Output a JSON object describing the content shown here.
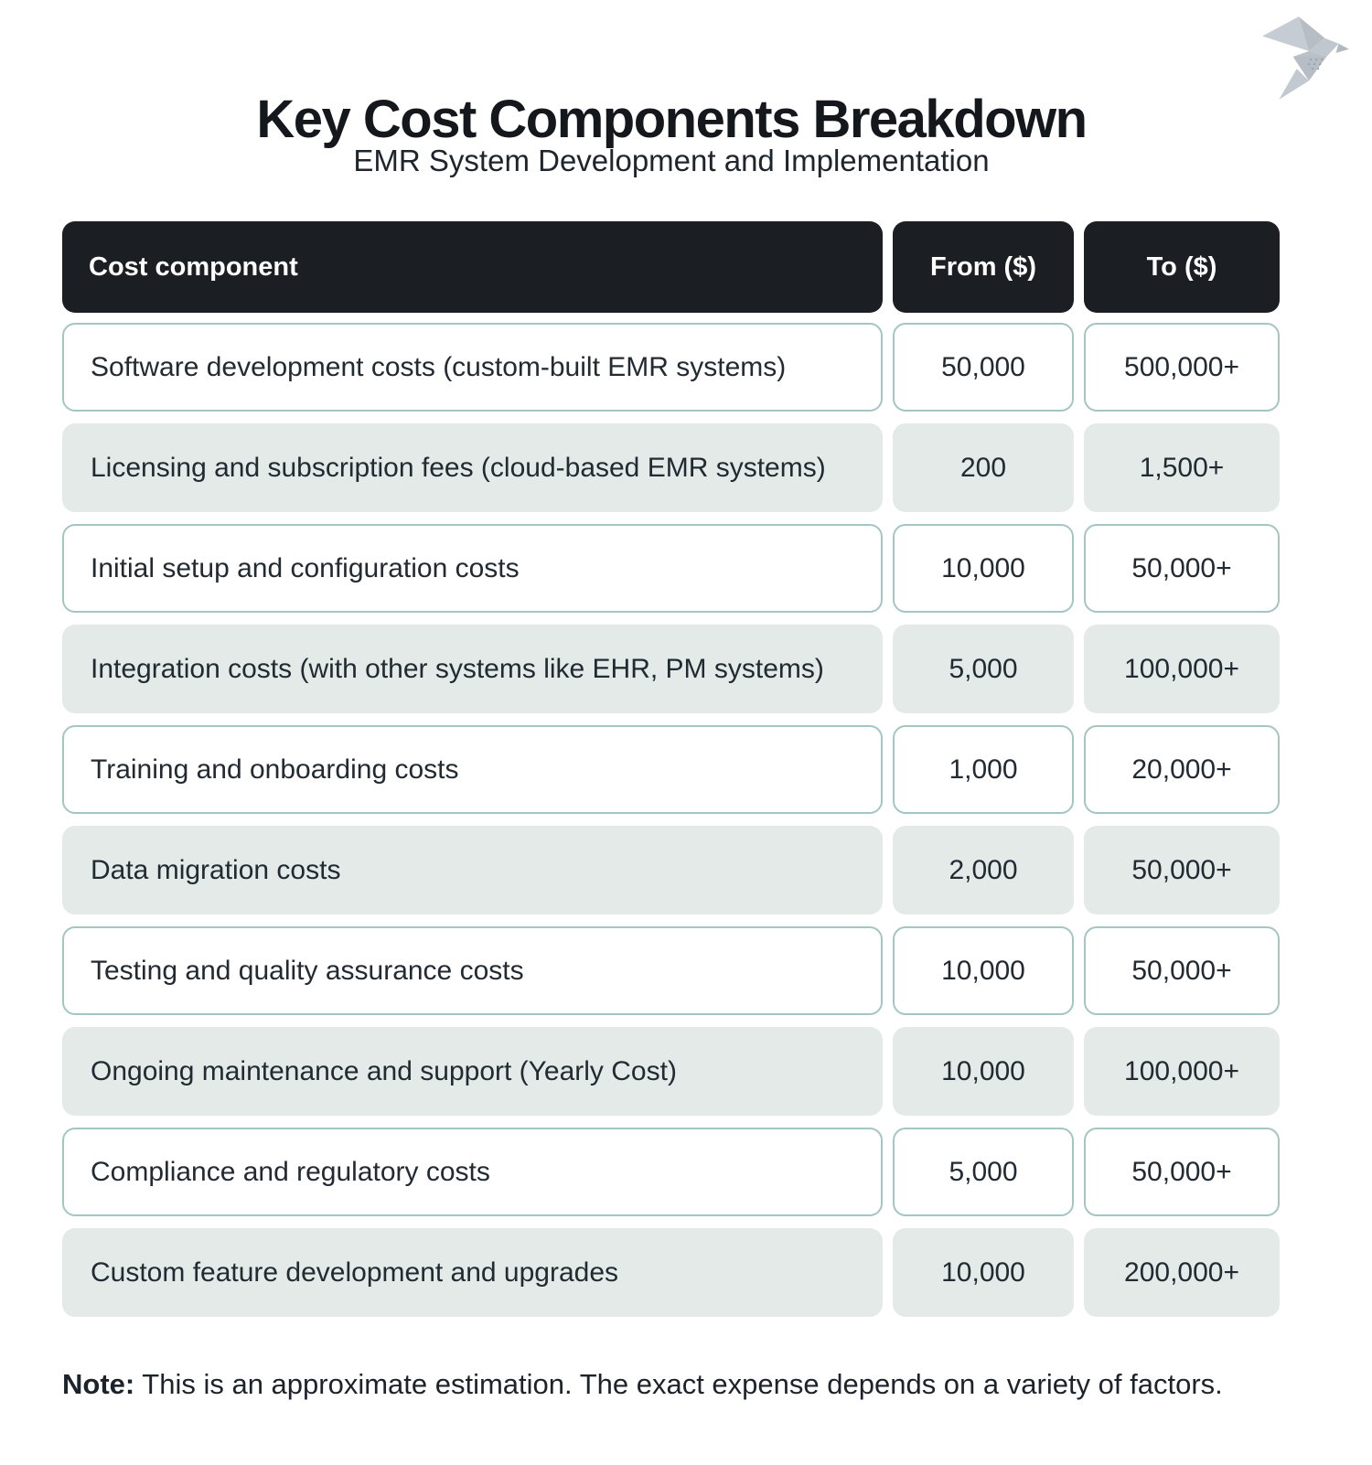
{
  "page": {
    "title": "Key Cost Components Breakdown",
    "subtitle": "EMR System Development and Implementation",
    "note_label": "Note:",
    "note_text": " This is an approximate estimation. The exact expense depends on a variety of factors."
  },
  "table": {
    "columns": [
      "Cost component",
      "From ($)",
      "To ($)"
    ],
    "rows": [
      {
        "component": "Software development costs (custom-built EMR systems)",
        "from": "50,000",
        "to": "500,000+"
      },
      {
        "component": "Licensing and subscription fees (cloud-based EMR systems)",
        "from": "200",
        "to": "1,500+"
      },
      {
        "component": "Initial setup and configuration costs",
        "from": "10,000",
        "to": "50,000+"
      },
      {
        "component": "Integration costs (with other systems like EHR, PM systems)",
        "from": "5,000",
        "to": "100,000+"
      },
      {
        "component": "Training and onboarding costs",
        "from": "1,000",
        "to": "20,000+"
      },
      {
        "component": "Data migration costs",
        "from": "2,000",
        "to": "50,000+"
      },
      {
        "component": "Testing and quality assurance costs",
        "from": "10,000",
        "to": "50,000+"
      },
      {
        "component": "Ongoing maintenance and support (Yearly Cost)",
        "from": "10,000",
        "to": "100,000+"
      },
      {
        "component": "Compliance and regulatory costs",
        "from": "5,000",
        "to": "50,000+"
      },
      {
        "component": "Custom feature development and upgrades",
        "from": "10,000",
        "to": "200,000+"
      }
    ]
  },
  "icons": {
    "logo": "origami-bird-logo"
  },
  "colors": {
    "header_bg": "#1b1f23",
    "header_text": "#ffffff",
    "row_border": "#a3c6c2",
    "row_alt_bg": "#e4eae8",
    "text": "#222a32",
    "title": "#14181d",
    "logo_gray": "#b6bdc5",
    "logo_gray_light": "#c6ccd3"
  },
  "chart_data": {
    "type": "table",
    "title": "Key Cost Components Breakdown",
    "subtitle": "EMR System Development and Implementation",
    "columns": [
      "Cost component",
      "From ($)",
      "To ($)"
    ],
    "rows": [
      [
        "Software development costs (custom-built EMR systems)",
        "50,000",
        "500,000+"
      ],
      [
        "Licensing and subscription fees (cloud-based EMR systems)",
        "200",
        "1,500+"
      ],
      [
        "Initial setup and configuration costs",
        "10,000",
        "50,000+"
      ],
      [
        "Integration costs (with other systems like EHR, PM systems)",
        "5,000",
        "100,000+"
      ],
      [
        "Training and onboarding costs",
        "1,000",
        "20,000+"
      ],
      [
        "Data migration costs",
        "2,000",
        "50,000+"
      ],
      [
        "Testing and quality assurance costs",
        "10,000",
        "50,000+"
      ],
      [
        "Ongoing maintenance and support (Yearly Cost)",
        "10,000",
        "100,000+"
      ],
      [
        "Compliance and regulatory costs",
        "5,000",
        "50,000+"
      ],
      [
        "Custom feature development and upgrades",
        "10,000",
        "200,000+"
      ]
    ],
    "note": "Note: This is an approximate estimation. The exact expense depends on a variety of factors.",
    "units": "USD",
    "layout": {
      "header_style": "dark",
      "alternating_rows": true
    }
  }
}
